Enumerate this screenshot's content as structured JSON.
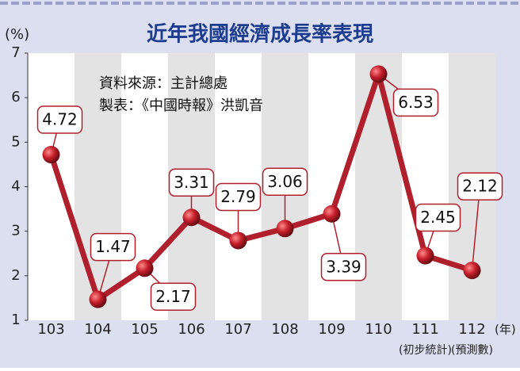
{
  "chart_data": {
    "type": "line",
    "title": "近年我國經濟成長率表現",
    "y_label": "(%)",
    "x_unit": "(年)",
    "source_lines": [
      "資料來源：主計總處",
      "製表：《中國時報》洪凱音"
    ],
    "categories": [
      "103",
      "104",
      "105",
      "106",
      "107",
      "108",
      "109",
      "110",
      "111",
      "112"
    ],
    "category_notes": [
      null,
      null,
      null,
      null,
      null,
      null,
      null,
      null,
      "(初步統計)",
      "(預測數)"
    ],
    "values": [
      4.72,
      1.47,
      2.17,
      3.31,
      2.79,
      3.06,
      3.39,
      6.53,
      2.45,
      2.12
    ],
    "color": "#b0202c",
    "ylim": [
      1,
      7
    ],
    "yticks": [
      1,
      2,
      3,
      4,
      5,
      6,
      7
    ],
    "grid": false
  }
}
